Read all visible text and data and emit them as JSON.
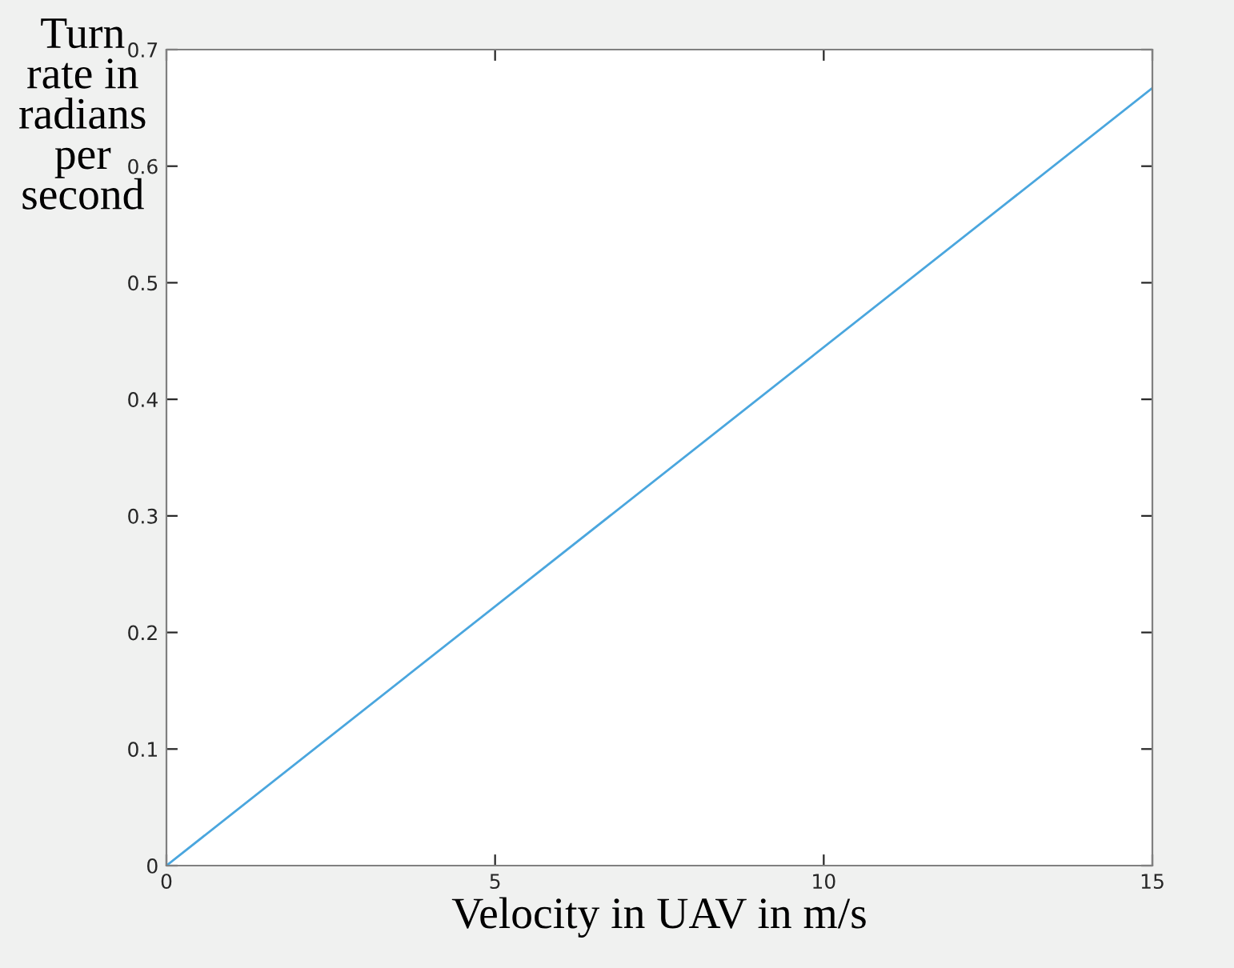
{
  "chart_data": {
    "type": "line",
    "xlabel": "Velocity in UAV in m/s",
    "ylabel": "Turn\nrate in\nradians\nper\nsecond",
    "x": [
      0,
      15
    ],
    "series": [
      {
        "color": "#4aa6de",
        "values": [
          0,
          0.667
        ]
      }
    ],
    "xlim": [
      0,
      15
    ],
    "xticks": [
      0,
      5,
      10,
      15
    ],
    "ylim": [
      0,
      0.7
    ],
    "yticks": [
      0,
      0.1,
      0.2,
      0.3,
      0.4,
      0.5,
      0.6,
      0.7
    ],
    "grid": false,
    "legend": false,
    "marker": "none",
    "line_style": "solid"
  }
}
